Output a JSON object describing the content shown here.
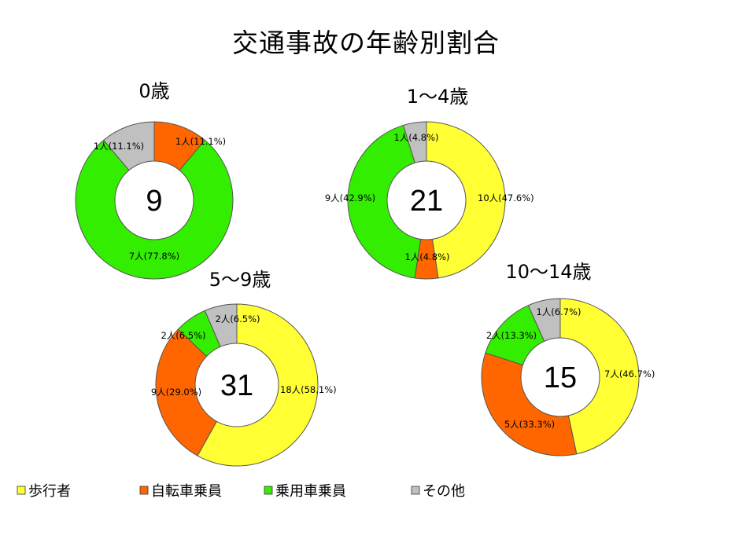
{
  "title": "交通事故の年齢別割合",
  "colors": {
    "pedestrian": "#ffff33",
    "bicycle": "#ff6600",
    "car": "#33ee00",
    "other": "#c0c0c0",
    "stroke": "#555555"
  },
  "legend": [
    {
      "label": "歩行者",
      "color_key": "pedestrian"
    },
    {
      "label": "自転車乗員",
      "color_key": "bicycle"
    },
    {
      "label": "乗用車乗員",
      "color_key": "car"
    },
    {
      "label": "その他",
      "color_key": "other"
    }
  ],
  "chart_data": [
    {
      "type": "pie",
      "label": "0歳",
      "total": "9",
      "slices": [
        {
          "category": "歩行者",
          "value": 0,
          "color_key": "pedestrian",
          "text": ""
        },
        {
          "category": "自転車乗員",
          "value": 1,
          "color_key": "bicycle",
          "text": "1人(11.1%)"
        },
        {
          "category": "乗用車乗員",
          "value": 7,
          "color_key": "car",
          "text": "7人(77.8%)"
        },
        {
          "category": "その他",
          "value": 1,
          "color_key": "other",
          "text": "1人(11.1%)"
        }
      ]
    },
    {
      "type": "pie",
      "label": "1～4歳",
      "total": "21",
      "slices": [
        {
          "category": "歩行者",
          "value": 10,
          "color_key": "pedestrian",
          "text": "10人(47.6%)"
        },
        {
          "category": "自転車乗員",
          "value": 1,
          "color_key": "bicycle",
          "text": "1人(4.8%)"
        },
        {
          "category": "乗用車乗員",
          "value": 9,
          "color_key": "car",
          "text": "9人(42.9%)"
        },
        {
          "category": "その他",
          "value": 1,
          "color_key": "other",
          "text": "1人(4.8%)"
        }
      ]
    },
    {
      "type": "pie",
      "label": "5～9歳",
      "total": "31",
      "slices": [
        {
          "category": "歩行者",
          "value": 18,
          "color_key": "pedestrian",
          "text": "18人(58.1%)"
        },
        {
          "category": "自転車乗員",
          "value": 9,
          "color_key": "bicycle",
          "text": "9人(29.0%)"
        },
        {
          "category": "乗用車乗員",
          "value": 2,
          "color_key": "car",
          "text": "2人(6.5%)"
        },
        {
          "category": "その他",
          "value": 2,
          "color_key": "other",
          "text": "2人(6.5%)"
        }
      ]
    },
    {
      "type": "pie",
      "label": "10～14歳",
      "total": "15",
      "slices": [
        {
          "category": "歩行者",
          "value": 7,
          "color_key": "pedestrian",
          "text": "7人(46.7%)"
        },
        {
          "category": "自転車乗員",
          "value": 5,
          "color_key": "bicycle",
          "text": "5人(33.3%)"
        },
        {
          "category": "乗用車乗員",
          "value": 2,
          "color_key": "car",
          "text": "2人(13.3%)"
        },
        {
          "category": "その他",
          "value": 1,
          "color_key": "other",
          "text": "1人(6.7%)"
        }
      ]
    }
  ]
}
